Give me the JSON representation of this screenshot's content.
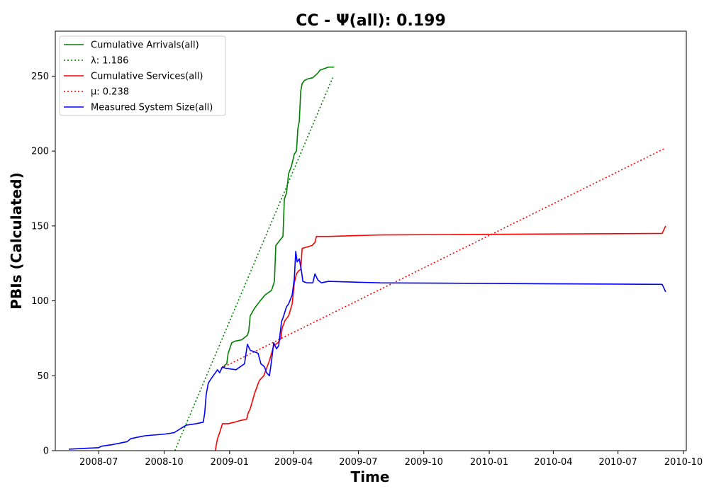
{
  "chart_data": {
    "type": "line",
    "title": "CC -  Ψ(all): 0.199",
    "xlabel": "Time",
    "ylabel": "PBIs (Calculated)",
    "x_type": "date",
    "xlim": [
      "2008-05-01",
      "2010-10-05"
    ],
    "ylim": [
      0,
      280
    ],
    "x_ticks": [
      "2008-07-01",
      "2008-10-01",
      "2009-01-01",
      "2009-04-01",
      "2009-07-01",
      "2009-10-01",
      "2010-01-01",
      "2010-04-01",
      "2010-07-01",
      "2010-10-01"
    ],
    "x_tick_labels": [
      "2008-07",
      "2008-10",
      "2009-01",
      "2009-04",
      "2009-07",
      "2009-10",
      "2010-01",
      "2010-04",
      "2010-07",
      "2010-10"
    ],
    "y_ticks": [
      0,
      50,
      100,
      150,
      200,
      250
    ],
    "grid": false,
    "legend_position": "top-left",
    "series": [
      {
        "name": "Cumulative Arrivals(all)",
        "color": "#008000",
        "style": "solid",
        "points": [
          [
            "2008-12-23",
            55
          ],
          [
            "2008-12-25",
            57
          ],
          [
            "2008-12-28",
            58
          ],
          [
            "2008-12-30",
            65
          ],
          [
            "2009-01-04",
            72
          ],
          [
            "2009-01-08",
            73
          ],
          [
            "2009-01-18",
            74
          ],
          [
            "2009-01-26",
            77
          ],
          [
            "2009-01-28",
            80
          ],
          [
            "2009-01-30",
            90
          ],
          [
            "2009-02-05",
            95
          ],
          [
            "2009-02-13",
            100
          ],
          [
            "2009-02-20",
            104
          ],
          [
            "2009-03-01",
            107
          ],
          [
            "2009-03-05",
            113
          ],
          [
            "2009-03-07",
            137
          ],
          [
            "2009-03-12",
            140
          ],
          [
            "2009-03-17",
            143
          ],
          [
            "2009-03-19",
            168
          ],
          [
            "2009-03-22",
            172
          ],
          [
            "2009-03-25",
            185
          ],
          [
            "2009-03-29",
            190
          ],
          [
            "2009-04-02",
            198
          ],
          [
            "2009-04-05",
            200
          ],
          [
            "2009-04-07",
            215
          ],
          [
            "2009-04-09",
            220
          ],
          [
            "2009-04-11",
            240
          ],
          [
            "2009-04-13",
            245
          ],
          [
            "2009-04-16",
            247
          ],
          [
            "2009-04-20",
            248
          ],
          [
            "2009-04-28",
            249
          ],
          [
            "2009-05-05",
            252
          ],
          [
            "2009-05-08",
            254
          ],
          [
            "2009-05-20",
            256
          ],
          [
            "2009-05-28",
            256
          ]
        ]
      },
      {
        "name": "λ: 1.186",
        "color": "#008000",
        "style": "dotted",
        "points": [
          [
            "2008-10-16",
            0
          ],
          [
            "2009-05-26",
            249
          ]
        ]
      },
      {
        "name": "Cumulative Services(all)",
        "color": "#ff0000",
        "style": "solid",
        "points": [
          [
            "2008-12-12",
            0
          ],
          [
            "2008-12-13",
            3
          ],
          [
            "2008-12-15",
            8
          ],
          [
            "2008-12-18",
            12
          ],
          [
            "2008-12-22",
            18
          ],
          [
            "2008-12-30",
            18
          ],
          [
            "2009-01-08",
            19
          ],
          [
            "2009-01-15",
            20
          ],
          [
            "2009-01-25",
            21
          ],
          [
            "2009-01-27",
            25
          ],
          [
            "2009-01-30",
            28
          ],
          [
            "2009-02-02",
            33
          ],
          [
            "2009-02-05",
            38
          ],
          [
            "2009-02-08",
            42
          ],
          [
            "2009-02-12",
            47
          ],
          [
            "2009-02-18",
            50
          ],
          [
            "2009-02-22",
            55
          ],
          [
            "2009-02-26",
            60
          ],
          [
            "2009-03-01",
            65
          ],
          [
            "2009-03-04",
            70
          ],
          [
            "2009-03-10",
            72
          ],
          [
            "2009-03-14",
            75
          ],
          [
            "2009-03-16",
            82
          ],
          [
            "2009-03-20",
            87
          ],
          [
            "2009-03-25",
            90
          ],
          [
            "2009-03-30",
            98
          ],
          [
            "2009-04-02",
            112
          ],
          [
            "2009-04-05",
            118
          ],
          [
            "2009-04-08",
            120
          ],
          [
            "2009-04-11",
            121
          ],
          [
            "2009-04-13",
            135
          ],
          [
            "2009-04-20",
            136
          ],
          [
            "2009-04-27",
            137
          ],
          [
            "2009-05-01",
            139
          ],
          [
            "2009-05-03",
            143
          ],
          [
            "2009-05-20",
            143
          ],
          [
            "2009-08-01",
            144
          ],
          [
            "2010-09-01",
            145
          ],
          [
            "2010-09-06",
            150
          ]
        ]
      },
      {
        "name": "μ: 0.238",
        "color": "#ff0000",
        "style": "dotted",
        "points": [
          [
            "2008-12-20",
            55
          ],
          [
            "2010-09-06",
            202
          ]
        ]
      },
      {
        "name": "Measured System Size(all)",
        "color": "#0000ff",
        "style": "solid",
        "points": [
          [
            "2008-05-20",
            1
          ],
          [
            "2008-06-10",
            1.5
          ],
          [
            "2008-07-01",
            2
          ],
          [
            "2008-07-05",
            3
          ],
          [
            "2008-07-20",
            4
          ],
          [
            "2008-08-10",
            6
          ],
          [
            "2008-08-15",
            8
          ],
          [
            "2008-08-30",
            9.5
          ],
          [
            "2008-09-05",
            10
          ],
          [
            "2008-10-01",
            11
          ],
          [
            "2008-10-15",
            12
          ],
          [
            "2008-10-25",
            15
          ],
          [
            "2008-11-01",
            17
          ],
          [
            "2008-11-15",
            18
          ],
          [
            "2008-11-25",
            19
          ],
          [
            "2008-11-27",
            25
          ],
          [
            "2008-11-29",
            37
          ],
          [
            "2008-12-02",
            45
          ],
          [
            "2008-12-06",
            48
          ],
          [
            "2008-12-09",
            50
          ],
          [
            "2008-12-12",
            52
          ],
          [
            "2008-12-15",
            54
          ],
          [
            "2008-12-18",
            52
          ],
          [
            "2008-12-22",
            56
          ],
          [
            "2008-12-26",
            55
          ],
          [
            "2009-01-10",
            54
          ],
          [
            "2009-01-22",
            58
          ],
          [
            "2009-01-26",
            71
          ],
          [
            "2009-01-30",
            67
          ],
          [
            "2009-02-05",
            66
          ],
          [
            "2009-02-10",
            65
          ],
          [
            "2009-02-14",
            58
          ],
          [
            "2009-02-19",
            56
          ],
          [
            "2009-02-22",
            52
          ],
          [
            "2009-02-26",
            50
          ],
          [
            "2009-03-01",
            60
          ],
          [
            "2009-03-04",
            72
          ],
          [
            "2009-03-08",
            68
          ],
          [
            "2009-03-11",
            70
          ],
          [
            "2009-03-15",
            86
          ],
          [
            "2009-03-18",
            90
          ],
          [
            "2009-03-22",
            96
          ],
          [
            "2009-03-25",
            98
          ],
          [
            "2009-03-30",
            104
          ],
          [
            "2009-04-02",
            115
          ],
          [
            "2009-04-04",
            133
          ],
          [
            "2009-04-06",
            126
          ],
          [
            "2009-04-09",
            128
          ],
          [
            "2009-04-12",
            120
          ],
          [
            "2009-04-14",
            113
          ],
          [
            "2009-04-20",
            112
          ],
          [
            "2009-04-28",
            112
          ],
          [
            "2009-05-01",
            118
          ],
          [
            "2009-05-05",
            114
          ],
          [
            "2009-05-10",
            112
          ],
          [
            "2009-05-20",
            113
          ],
          [
            "2009-08-01",
            112
          ],
          [
            "2010-09-01",
            111
          ],
          [
            "2010-09-06",
            106
          ]
        ]
      }
    ]
  }
}
